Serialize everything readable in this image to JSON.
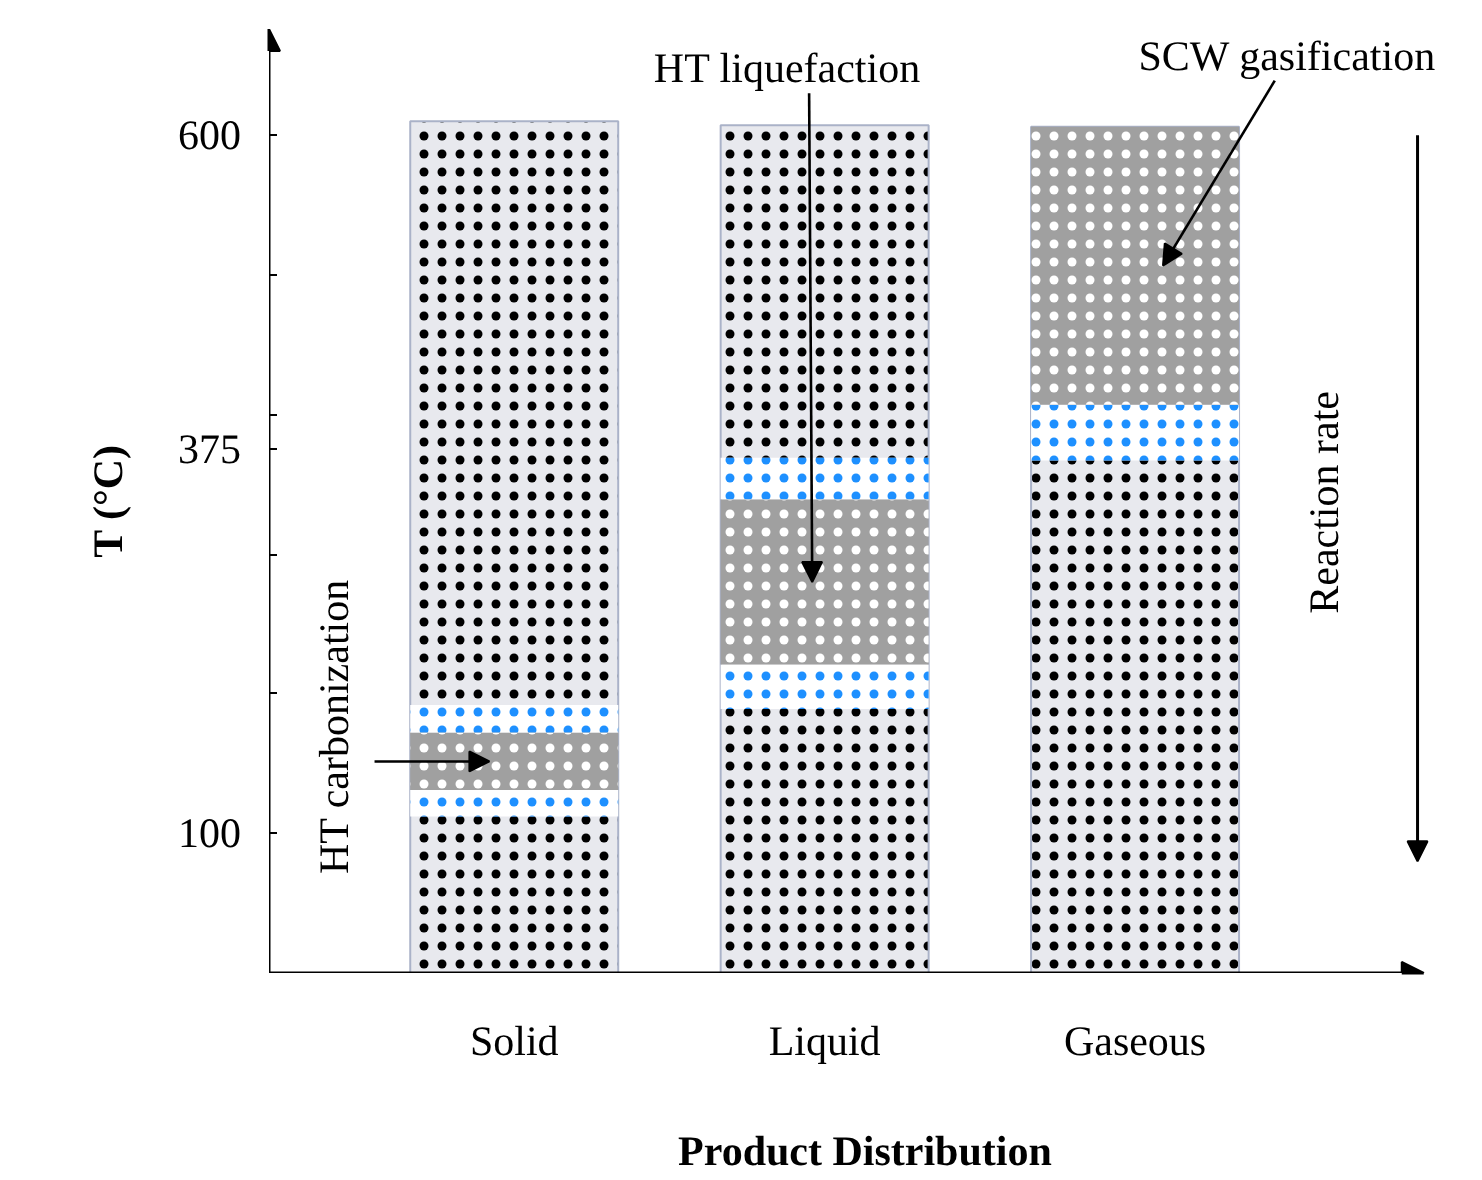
{
  "chart_data": {
    "type": "bar",
    "xlabel": "Product Distribution",
    "ylabel": "T (°C)",
    "categories": [
      "Solid",
      "Liquid",
      "Gaseous"
    ],
    "series": [
      {
        "color": "#e8e9ee",
        "base": [
          0,
          0,
          0
        ],
        "values": [
          610,
          607,
          606
        ]
      },
      {
        "color": "#ffffff",
        "base": [
          172,
          339,
          367
        ],
        "values": [
          20,
          30,
          40
        ]
      },
      {
        "color": "#ffffff",
        "base": [
          112,
          189,
          null
        ],
        "values": [
          19,
          32,
          null
        ]
      },
      {
        "color": "#a0a0a0",
        "base": [
          131,
          221,
          407
        ],
        "values": [
          41,
          118,
          199
        ]
      }
    ],
    "ylim": [
      0,
      676
    ],
    "yticks": [
      100,
      {
        "value": 200,
        "label": null
      },
      {
        "value": 300,
        "label": null
      },
      375,
      {
        "value": 400,
        "label": null
      },
      {
        "value": 500,
        "label": null
      },
      600
    ],
    "grid": false,
    "annotations": [
      "HT carbonization",
      "HT liquefaction",
      "SCW gasification",
      "Reaction rate"
    ]
  }
}
